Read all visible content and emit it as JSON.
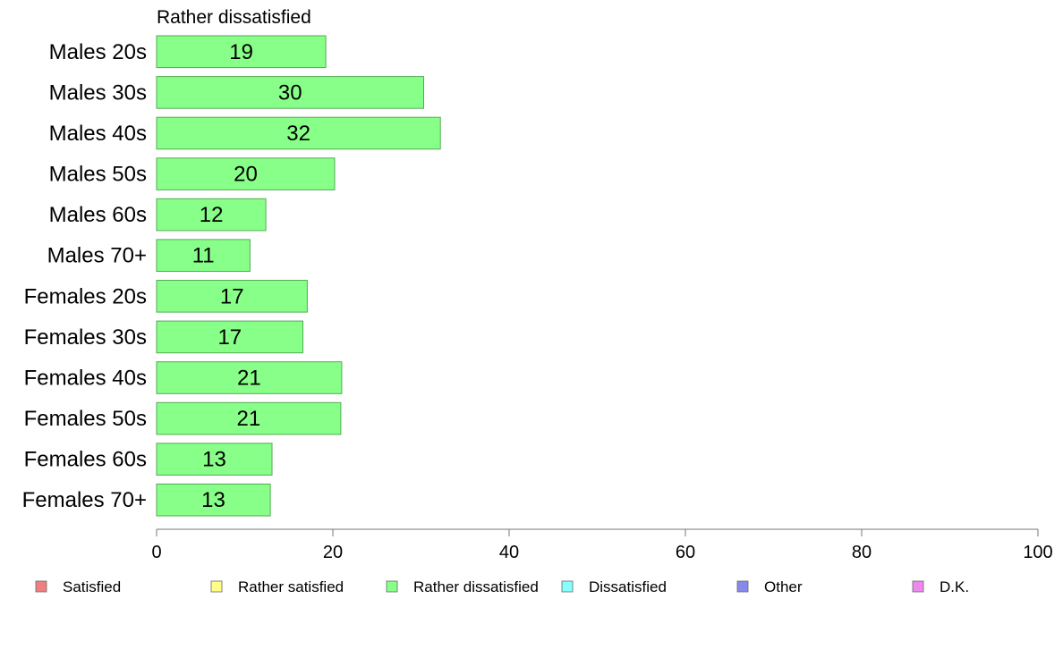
{
  "chart_data": {
    "type": "bar",
    "orientation": "horizontal",
    "title": "Rather dissatisfied",
    "categories": [
      "Males 20s",
      "Males 30s",
      "Males 40s",
      "Males 50s",
      "Males 60s",
      "Males 70+",
      "Females 20s",
      "Females 30s",
      "Females 40s",
      "Females 50s",
      "Females 60s",
      "Females 70+"
    ],
    "values": [
      19.2,
      30.3,
      32.2,
      20.2,
      12.4,
      10.6,
      17.1,
      16.6,
      21.0,
      20.9,
      13.1,
      12.9
    ],
    "data_labels": [
      "19",
      "30",
      "32",
      "20",
      "12",
      "11",
      "17",
      "17",
      "21",
      "21",
      "13",
      "13"
    ],
    "bar_color": "#88ff88",
    "bar_edge_color": "#55aa55",
    "xlim": [
      0,
      100
    ],
    "xticks": [
      0,
      20,
      40,
      60,
      80,
      100
    ],
    "xtick_labels": [
      "0",
      "20",
      "40",
      "60",
      "80",
      "100"
    ],
    "grid": false,
    "legend": {
      "position": "bottom",
      "items": [
        {
          "label": "Satisfied",
          "color": "#f08080"
        },
        {
          "label": "Rather satisfied",
          "color": "#ffff88"
        },
        {
          "label": "Rather dissatisfied",
          "color": "#88ff88"
        },
        {
          "label": "Dissatisfied",
          "color": "#88ffff"
        },
        {
          "label": "Other",
          "color": "#8888ee"
        },
        {
          "label": "D.K.",
          "color": "#ee88ee"
        }
      ]
    }
  }
}
